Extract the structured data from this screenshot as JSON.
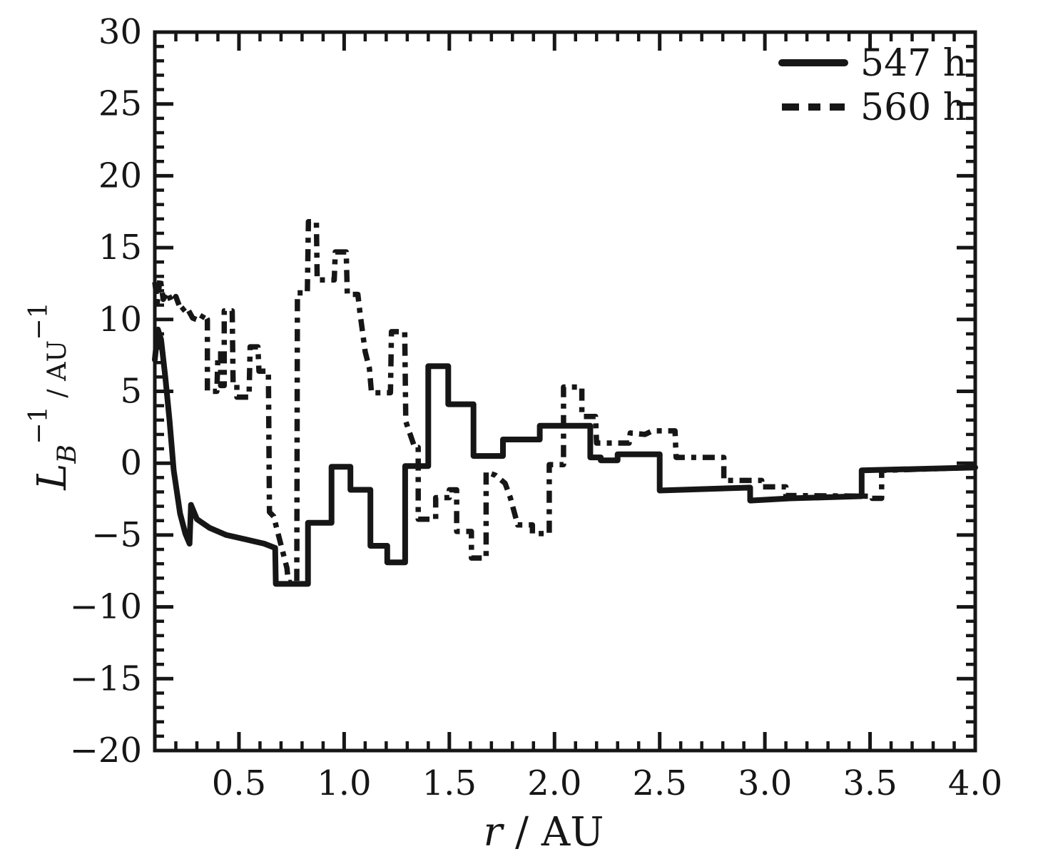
{
  "figure": {
    "background": "#ffffff",
    "ink_color": "#161616"
  },
  "legend": {
    "position": "top-right",
    "entries": [
      {
        "label": "547 h",
        "style": "solid"
      },
      {
        "label": "560 h",
        "style": "dashed"
      }
    ]
  },
  "axes": {
    "x": {
      "title": "r / AU",
      "title_parts": [
        {
          "t": "r",
          "italic": true
        },
        {
          "t": " / AU"
        }
      ],
      "min": 0.1,
      "max": 4.0,
      "minor_step": 0.1,
      "major_ticks": [
        {
          "v": 0.5,
          "t": "0.5"
        },
        {
          "v": 1.0,
          "t": "1.0"
        },
        {
          "v": 1.5,
          "t": "1.5"
        },
        {
          "v": 2.0,
          "t": "2.0"
        },
        {
          "v": 2.5,
          "t": "2.5"
        },
        {
          "v": 3.0,
          "t": "3.0"
        },
        {
          "v": 3.5,
          "t": "3.5"
        },
        {
          "v": 4.0,
          "t": "4.0"
        }
      ]
    },
    "y": {
      "title": "L_B^{-1} / AU^{-1}",
      "title_parts": [
        {
          "t": "L",
          "italic": true
        },
        {
          "t": "B",
          "italic": true,
          "pos": "sub"
        },
        {
          "t": "−1",
          "pos": "sup"
        },
        {
          "t": " / AU",
          "pos": "base"
        },
        {
          "t": "−1",
          "pos": "sup"
        }
      ],
      "min": -20,
      "max": 30,
      "minor_step": 1,
      "major_ticks": [
        {
          "v": -20,
          "t": "−20"
        },
        {
          "v": -15,
          "t": "−15"
        },
        {
          "v": -10,
          "t": "−10"
        },
        {
          "v": -5,
          "t": "−5"
        },
        {
          "v": 0,
          "t": "0"
        },
        {
          "v": 5,
          "t": "5"
        },
        {
          "v": 10,
          "t": "10"
        },
        {
          "v": 15,
          "t": "15"
        },
        {
          "v": 20,
          "t": "20"
        },
        {
          "v": 25,
          "t": "25"
        },
        {
          "v": 30,
          "t": "30"
        }
      ]
    }
  },
  "chart_data": {
    "type": "line",
    "xlabel": "r / AU",
    "ylabel": "L_B^-1 / AU^-1",
    "xlim": [
      0.1,
      4.0
    ],
    "ylim": [
      -20,
      30
    ],
    "grid": false,
    "legend_position": "top-right",
    "series": [
      {
        "name": "547 h",
        "style": "solid",
        "points": [
          [
            0.1,
            7.2
          ],
          [
            0.115,
            9.3
          ],
          [
            0.13,
            8.6
          ],
          [
            0.15,
            6.0
          ],
          [
            0.17,
            3.0
          ],
          [
            0.19,
            -0.5
          ],
          [
            0.22,
            -3.5
          ],
          [
            0.245,
            -4.9
          ],
          [
            0.265,
            -5.6
          ],
          [
            0.272,
            -2.9
          ],
          [
            0.3,
            -3.9
          ],
          [
            0.36,
            -4.5
          ],
          [
            0.44,
            -5.0
          ],
          [
            0.53,
            -5.3
          ],
          [
            0.62,
            -5.6
          ],
          [
            0.672,
            -5.9
          ],
          [
            0.675,
            -8.4
          ],
          [
            0.828,
            -8.4
          ],
          [
            0.828,
            -4.15
          ],
          [
            0.94,
            -4.15
          ],
          [
            0.94,
            -0.25
          ],
          [
            1.03,
            -0.25
          ],
          [
            1.03,
            -1.85
          ],
          [
            1.125,
            -1.85
          ],
          [
            1.125,
            -5.75
          ],
          [
            1.205,
            -5.75
          ],
          [
            1.205,
            -6.9
          ],
          [
            1.29,
            -6.9
          ],
          [
            1.29,
            -0.2
          ],
          [
            1.4,
            -0.2
          ],
          [
            1.4,
            6.75
          ],
          [
            1.495,
            6.75
          ],
          [
            1.495,
            4.1
          ],
          [
            1.615,
            4.1
          ],
          [
            1.615,
            0.5
          ],
          [
            1.755,
            0.5
          ],
          [
            1.755,
            1.65
          ],
          [
            1.93,
            1.65
          ],
          [
            1.93,
            2.6
          ],
          [
            2.17,
            2.6
          ],
          [
            2.17,
            0.4
          ],
          [
            2.22,
            0.4
          ],
          [
            2.22,
            0.2
          ],
          [
            2.3,
            0.2
          ],
          [
            2.3,
            0.62
          ],
          [
            2.5,
            0.62
          ],
          [
            2.5,
            -1.9
          ],
          [
            2.93,
            -1.7
          ],
          [
            2.93,
            -2.6
          ],
          [
            3.12,
            -2.45
          ],
          [
            3.46,
            -2.3
          ],
          [
            3.46,
            -0.5
          ],
          [
            4.0,
            -0.3
          ]
        ]
      },
      {
        "name": "560 h",
        "style": "dashed",
        "points": [
          [
            0.1,
            12.6
          ],
          [
            0.112,
            11.2
          ],
          [
            0.125,
            12.9
          ],
          [
            0.14,
            11.4
          ],
          [
            0.16,
            11.9
          ],
          [
            0.18,
            11.2
          ],
          [
            0.2,
            11.6
          ],
          [
            0.225,
            10.6
          ],
          [
            0.25,
            10.9
          ],
          [
            0.28,
            10.1
          ],
          [
            0.315,
            9.9
          ],
          [
            0.335,
            10.4
          ],
          [
            0.35,
            10.0
          ],
          [
            0.35,
            5.0
          ],
          [
            0.395,
            5.0
          ],
          [
            0.4,
            7.6
          ],
          [
            0.413,
            7.6
          ],
          [
            0.413,
            5.4
          ],
          [
            0.43,
            5.4
          ],
          [
            0.43,
            10.6
          ],
          [
            0.468,
            10.6
          ],
          [
            0.472,
            5.6
          ],
          [
            0.49,
            5.6
          ],
          [
            0.49,
            4.6
          ],
          [
            0.548,
            4.6
          ],
          [
            0.553,
            8.1
          ],
          [
            0.59,
            8.1
          ],
          [
            0.595,
            6.4
          ],
          [
            0.64,
            6.4
          ],
          [
            0.645,
            -3.4
          ],
          [
            0.665,
            -3.7
          ],
          [
            0.728,
            -7.3
          ],
          [
            0.735,
            -8.3
          ],
          [
            0.775,
            -8.3
          ],
          [
            0.778,
            11.85
          ],
          [
            0.825,
            11.85
          ],
          [
            0.83,
            16.8
          ],
          [
            0.868,
            16.8
          ],
          [
            0.872,
            12.75
          ],
          [
            0.953,
            12.75
          ],
          [
            0.958,
            14.7
          ],
          [
            1.01,
            14.7
          ],
          [
            1.015,
            11.75
          ],
          [
            1.065,
            11.75
          ],
          [
            1.075,
            10.5
          ],
          [
            1.1,
            7.75
          ],
          [
            1.12,
            6.6
          ],
          [
            1.13,
            4.9
          ],
          [
            1.22,
            4.9
          ],
          [
            1.225,
            9.15
          ],
          [
            1.288,
            9.15
          ],
          [
            1.293,
            2.9
          ],
          [
            1.335,
            1.1
          ],
          [
            1.352,
            1.1
          ],
          [
            1.352,
            -3.9
          ],
          [
            1.435,
            -3.9
          ],
          [
            1.435,
            -2.4
          ],
          [
            1.5,
            -2.4
          ],
          [
            1.5,
            -1.85
          ],
          [
            1.535,
            -1.85
          ],
          [
            1.535,
            -4.75
          ],
          [
            1.605,
            -4.75
          ],
          [
            1.605,
            -6.6
          ],
          [
            1.675,
            -6.6
          ],
          [
            1.675,
            -0.6
          ],
          [
            1.72,
            -0.85
          ],
          [
            1.765,
            -1.4
          ],
          [
            1.79,
            -2.4
          ],
          [
            1.825,
            -4.3
          ],
          [
            1.895,
            -4.3
          ],
          [
            1.895,
            -4.9
          ],
          [
            1.975,
            -4.9
          ],
          [
            1.975,
            -0.1
          ],
          [
            2.043,
            -0.1
          ],
          [
            2.043,
            5.3
          ],
          [
            2.13,
            5.3
          ],
          [
            2.13,
            3.25
          ],
          [
            2.195,
            3.25
          ],
          [
            2.2,
            1.4
          ],
          [
            2.355,
            1.4
          ],
          [
            2.36,
            2.1
          ],
          [
            2.43,
            2.0
          ],
          [
            2.465,
            2.25
          ],
          [
            2.573,
            2.25
          ],
          [
            2.578,
            0.4
          ],
          [
            2.805,
            0.4
          ],
          [
            2.805,
            -1.2
          ],
          [
            2.985,
            -1.2
          ],
          [
            2.985,
            -1.65
          ],
          [
            3.1,
            -1.65
          ],
          [
            3.1,
            -2.25
          ],
          [
            3.51,
            -2.3
          ],
          [
            3.51,
            -2.45
          ],
          [
            3.555,
            -2.45
          ],
          [
            3.555,
            -0.5
          ],
          [
            4.0,
            -0.3
          ]
        ]
      }
    ]
  }
}
